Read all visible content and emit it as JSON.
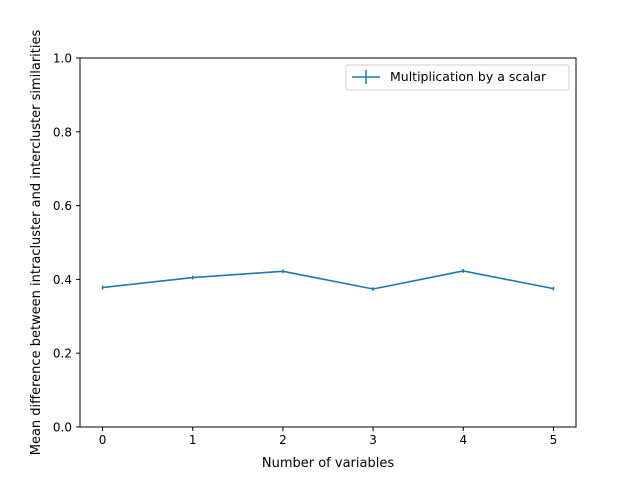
{
  "chart_data": {
    "type": "line",
    "title": "",
    "xlabel": "Number of variables",
    "ylabel": "Mean difference between intracluster and intercluster similarities",
    "xlim": [
      -0.25,
      5.25
    ],
    "ylim": [
      0.0,
      1.0
    ],
    "xticks": [
      0,
      1,
      2,
      3,
      4,
      5
    ],
    "xtick_labels": [
      "0",
      "1",
      "2",
      "3",
      "4",
      "5"
    ],
    "yticks": [
      0.0,
      0.2,
      0.4,
      0.6,
      0.8,
      1.0
    ],
    "ytick_labels": [
      "0.0",
      "0.2",
      "0.4",
      "0.6",
      "0.8",
      "1.0"
    ],
    "grid": false,
    "legend_position": "upper right",
    "series": [
      {
        "name": "Multiplication by a scalar",
        "color": "#1f77b4",
        "x": [
          0,
          1,
          2,
          3,
          4,
          5
        ],
        "values": [
          0.378,
          0.405,
          0.422,
          0.374,
          0.423,
          0.375
        ],
        "error": [
          0.005,
          0.005,
          0.005,
          0.005,
          0.005,
          0.005
        ]
      }
    ]
  }
}
